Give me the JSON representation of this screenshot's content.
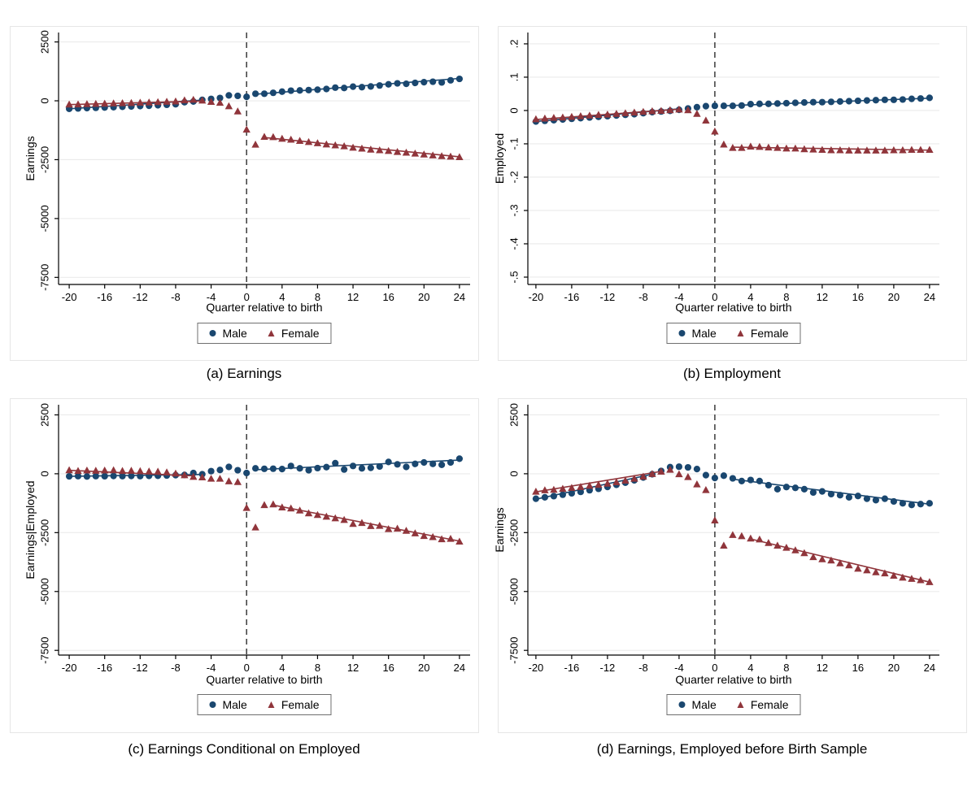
{
  "figure": {
    "background": "#ffffff",
    "text_color": "#000000",
    "gridline_color": "#ebebeb",
    "axis_color": "#000000",
    "panel_border_color": "#e6e6e6",
    "vline_style": "dashed",
    "vline_color": "#3a3a3a"
  },
  "legend": {
    "male_label": "Male",
    "female_label": "Female",
    "male_marker": "circle",
    "female_marker": "triangle",
    "position": "below-x-axis"
  },
  "colors": {
    "male": "#1a476f",
    "female": "#90353b"
  },
  "chart_data": [
    {
      "id": "a",
      "type": "scatter",
      "title": "(a) Earnings",
      "xlabel": "Quarter relative to birth",
      "ylabel": "Earnings",
      "xticks": [
        -20,
        -16,
        -12,
        -8,
        -4,
        0,
        4,
        8,
        12,
        16,
        20,
        24
      ],
      "xtick_labels": [
        "-20",
        "-16",
        "-12",
        "-8",
        "-4",
        "0",
        "4",
        "8",
        "12",
        "16",
        "20",
        "24"
      ],
      "yticks": [
        2500,
        0,
        -2500,
        -5000,
        -7500
      ],
      "ytick_labels": [
        "2500",
        "0",
        "-2500",
        "-5000",
        "-7500"
      ],
      "xlim": [
        -21.2,
        25.2
      ],
      "ylim": [
        -7800,
        2900
      ],
      "vline_x": 0,
      "grid": true,
      "x": [
        -20,
        -19,
        -18,
        -17,
        -16,
        -15,
        -14,
        -13,
        -12,
        -11,
        -10,
        -9,
        -8,
        -7,
        -6,
        -5,
        -4,
        -3,
        -2,
        -1,
        0,
        1,
        2,
        3,
        4,
        5,
        6,
        7,
        8,
        9,
        10,
        11,
        12,
        13,
        14,
        15,
        16,
        17,
        18,
        19,
        20,
        21,
        22,
        23,
        24
      ],
      "series": [
        {
          "name": "Male",
          "marker": "circle",
          "color": "#1a476f",
          "values": [
            -340,
            -325,
            -310,
            -300,
            -285,
            -270,
            -255,
            -240,
            -225,
            -210,
            -190,
            -170,
            -145,
            -60,
            -30,
            40,
            80,
            120,
            230,
            210,
            170,
            300,
            300,
            340,
            390,
            430,
            440,
            455,
            470,
            500,
            560,
            545,
            600,
            580,
            610,
            650,
            700,
            740,
            720,
            760,
            790,
            810,
            780,
            870,
            930
          ],
          "fit_segments": [
            [
              [
                -20,
                -340
              ],
              [
                -5,
                30
              ]
            ],
            [
              [
                1,
                280
              ],
              [
                24,
                950
              ]
            ]
          ]
        },
        {
          "name": "Female",
          "marker": "triangle",
          "color": "#90353b",
          "values": [
            -155,
            -150,
            -140,
            -130,
            -120,
            -110,
            -100,
            -90,
            -80,
            -70,
            -55,
            -40,
            -25,
            20,
            45,
            10,
            -45,
            -85,
            -230,
            -450,
            -1220,
            -1860,
            -1530,
            -1540,
            -1610,
            -1650,
            -1700,
            -1750,
            -1800,
            -1850,
            -1890,
            -1930,
            -1990,
            -2030,
            -2070,
            -2100,
            -2130,
            -2170,
            -2200,
            -2240,
            -2280,
            -2320,
            -2350,
            -2370,
            -2390
          ],
          "fit_segments": [
            [
              [
                -20,
                -160
              ],
              [
                -5,
                -10
              ]
            ],
            [
              [
                2,
                -1560
              ],
              [
                24,
                -2380
              ]
            ]
          ]
        }
      ]
    },
    {
      "id": "b",
      "type": "scatter",
      "title": "(b) Employment",
      "xlabel": "Quarter relative to birth",
      "ylabel": "Employed",
      "xticks": [
        -20,
        -16,
        -12,
        -8,
        -4,
        0,
        4,
        8,
        12,
        16,
        20,
        24
      ],
      "xtick_labels": [
        "-20",
        "-16",
        "-12",
        "-8",
        "-4",
        "0",
        "4",
        "8",
        "12",
        "16",
        "20",
        "24"
      ],
      "yticks": [
        0.2,
        0.1,
        0,
        -0.1,
        -0.2,
        -0.3,
        -0.4,
        -0.5
      ],
      "ytick_labels": [
        ".2",
        ".1",
        "0",
        "-.1",
        "-.2",
        "-.3",
        "-.4",
        "-.5"
      ],
      "xlim": [
        -20.9,
        25.1
      ],
      "ylim": [
        -0.522,
        0.234
      ],
      "vline_x": 0,
      "grid": true,
      "x": [
        -20,
        -19,
        -18,
        -17,
        -16,
        -15,
        -14,
        -13,
        -12,
        -11,
        -10,
        -9,
        -8,
        -7,
        -6,
        -5,
        -4,
        -3,
        -2,
        -1,
        0,
        1,
        2,
        3,
        4,
        5,
        6,
        7,
        8,
        9,
        10,
        11,
        12,
        13,
        14,
        15,
        16,
        17,
        18,
        19,
        20,
        21,
        22,
        23,
        24
      ],
      "series": [
        {
          "name": "Male",
          "marker": "circle",
          "color": "#1a476f",
          "values": [
            -0.033,
            -0.031,
            -0.029,
            -0.027,
            -0.025,
            -0.023,
            -0.021,
            -0.019,
            -0.017,
            -0.015,
            -0.013,
            -0.011,
            -0.008,
            -0.005,
            -0.003,
            -0.001,
            0.002,
            0.006,
            0.01,
            0.013,
            0.014,
            0.014,
            0.014,
            0.015,
            0.019,
            0.02,
            0.02,
            0.021,
            0.022,
            0.023,
            0.024,
            0.025,
            0.025,
            0.026,
            0.027,
            0.028,
            0.029,
            0.03,
            0.031,
            0.032,
            0.032,
            0.033,
            0.035,
            0.036,
            0.038
          ],
          "fit_segments": [
            [
              [
                -20,
                -0.033
              ],
              [
                -4,
                0.005
              ]
            ],
            [
              [
                1,
                0.014
              ],
              [
                24,
                0.037
              ]
            ]
          ]
        },
        {
          "name": "Female",
          "marker": "triangle",
          "color": "#90353b",
          "values": [
            -0.026,
            -0.024,
            -0.022,
            -0.021,
            -0.019,
            -0.017,
            -0.015,
            -0.013,
            -0.012,
            -0.01,
            -0.008,
            -0.006,
            -0.004,
            -0.002,
            -0.001,
            0.001,
            0.003,
            0.001,
            -0.01,
            -0.03,
            -0.063,
            -0.102,
            -0.112,
            -0.112,
            -0.108,
            -0.109,
            -0.111,
            -0.112,
            -0.114,
            -0.114,
            -0.116,
            -0.117,
            -0.118,
            -0.119,
            -0.119,
            -0.12,
            -0.12,
            -0.12,
            -0.12,
            -0.12,
            -0.119,
            -0.119,
            -0.118,
            -0.118,
            -0.118
          ],
          "fit_segments": [
            [
              [
                -20,
                -0.027
              ],
              [
                -4,
                0.004
              ]
            ],
            [
              [
                2,
                -0.11
              ],
              [
                24,
                -0.119
              ]
            ]
          ]
        }
      ]
    },
    {
      "id": "c",
      "type": "scatter",
      "title": "(c) Earnings Conditional on Employed",
      "xlabel": "Quarter relative to birth",
      "ylabel": "Earnings|Employed",
      "xticks": [
        -20,
        -16,
        -12,
        -8,
        -4,
        0,
        4,
        8,
        12,
        16,
        20,
        24
      ],
      "xtick_labels": [
        "-20",
        "-16",
        "-12",
        "-8",
        "-4",
        "0",
        "4",
        "8",
        "12",
        "16",
        "20",
        "24"
      ],
      "yticks": [
        2500,
        0,
        -2500,
        -5000,
        -7500
      ],
      "ytick_labels": [
        "2500",
        "0",
        "-2500",
        "-5000",
        "-7500"
      ],
      "xlim": [
        -21.2,
        25.2
      ],
      "ylim": [
        -7700,
        2930
      ],
      "vline_x": 0,
      "grid": true,
      "x": [
        -20,
        -19,
        -18,
        -17,
        -16,
        -15,
        -14,
        -13,
        -12,
        -11,
        -10,
        -9,
        -8,
        -7,
        -6,
        -5,
        -4,
        -3,
        -2,
        -1,
        0,
        1,
        2,
        3,
        4,
        5,
        6,
        7,
        8,
        9,
        10,
        11,
        12,
        13,
        14,
        15,
        16,
        17,
        18,
        19,
        20,
        21,
        22,
        23,
        24
      ],
      "series": [
        {
          "name": "Male",
          "marker": "circle",
          "color": "#1a476f",
          "values": [
            -110,
            -100,
            -115,
            -100,
            -105,
            -95,
            -100,
            -95,
            -100,
            -90,
            -85,
            -75,
            -60,
            -50,
            30,
            -20,
            110,
            160,
            290,
            150,
            30,
            230,
            210,
            215,
            200,
            330,
            230,
            150,
            240,
            280,
            450,
            180,
            330,
            230,
            250,
            310,
            500,
            400,
            290,
            420,
            480,
            420,
            380,
            480,
            640
          ],
          "fit_segments": [
            [
              [
                -20,
                -108
              ],
              [
                -5,
                -30
              ]
            ],
            [
              [
                1,
                170
              ],
              [
                24,
                580
              ]
            ]
          ]
        },
        {
          "name": "Female",
          "marker": "triangle",
          "color": "#90353b",
          "values": [
            150,
            120,
            140,
            130,
            140,
            150,
            120,
            130,
            110,
            100,
            90,
            60,
            10,
            -60,
            -130,
            -150,
            -210,
            -210,
            -320,
            -350,
            -1450,
            -2280,
            -1330,
            -1300,
            -1430,
            -1470,
            -1560,
            -1680,
            -1750,
            -1820,
            -1890,
            -1960,
            -2130,
            -2090,
            -2220,
            -2210,
            -2350,
            -2330,
            -2420,
            -2530,
            -2640,
            -2690,
            -2780,
            -2760,
            -2880
          ],
          "fit_segments": [
            [
              [
                -20,
                145
              ],
              [
                -6,
                -90
              ]
            ],
            [
              [
                3,
                -1330
              ],
              [
                24,
                -2860
              ]
            ]
          ]
        }
      ]
    },
    {
      "id": "d",
      "type": "scatter",
      "title": "(d) Earnings, Employed before Birth Sample",
      "xlabel": "Quarter relative to birth",
      "ylabel": "Earnings",
      "xticks": [
        -20,
        -16,
        -12,
        -8,
        -4,
        0,
        4,
        8,
        12,
        16,
        20,
        24
      ],
      "xtick_labels": [
        "-20",
        "-16",
        "-12",
        "-8",
        "-4",
        "0",
        "4",
        "8",
        "12",
        "16",
        "20",
        "24"
      ],
      "yticks": [
        2500,
        0,
        -2500,
        -5000,
        -7500
      ],
      "ytick_labels": [
        "2500",
        "0",
        "-2500",
        "-5000",
        "-7500"
      ],
      "xlim": [
        -20.9,
        25.1
      ],
      "ylim": [
        -7700,
        2930
      ],
      "vline_x": 0,
      "grid": true,
      "x": [
        -20,
        -19,
        -18,
        -17,
        -16,
        -15,
        -14,
        -13,
        -12,
        -11,
        -10,
        -9,
        -8,
        -7,
        -6,
        -5,
        -4,
        -3,
        -2,
        -1,
        0,
        1,
        2,
        3,
        4,
        5,
        6,
        7,
        8,
        9,
        10,
        11,
        12,
        13,
        14,
        15,
        16,
        17,
        18,
        19,
        20,
        21,
        22,
        23,
        24
      ],
      "series": [
        {
          "name": "Male",
          "marker": "circle",
          "color": "#1a476f",
          "values": [
            -1060,
            -1000,
            -950,
            -890,
            -830,
            -770,
            -700,
            -640,
            -560,
            -470,
            -380,
            -280,
            -160,
            -20,
            120,
            280,
            300,
            270,
            200,
            -60,
            -180,
            -80,
            -195,
            -310,
            -265,
            -310,
            -485,
            -655,
            -565,
            -600,
            -655,
            -795,
            -750,
            -865,
            -910,
            -1000,
            -945,
            -1060,
            -1120,
            -1060,
            -1175,
            -1255,
            -1325,
            -1290,
            -1255
          ],
          "fit_segments": [
            [
              [
                -20,
                -1080
              ],
              [
                -7,
                -20
              ]
            ],
            [
              [
                2,
                -230
              ],
              [
                24,
                -1290
              ]
            ]
          ]
        },
        {
          "name": "Female",
          "marker": "triangle",
          "color": "#90353b",
          "values": [
            -760,
            -700,
            -680,
            -640,
            -600,
            -560,
            -510,
            -470,
            -420,
            -360,
            -290,
            -210,
            -120,
            -10,
            90,
            170,
            -20,
            -140,
            -450,
            -690,
            -1980,
            -3050,
            -2600,
            -2650,
            -2750,
            -2790,
            -2940,
            -3050,
            -3140,
            -3250,
            -3370,
            -3540,
            -3630,
            -3680,
            -3800,
            -3890,
            -4030,
            -4100,
            -4180,
            -4230,
            -4330,
            -4410,
            -4460,
            -4520,
            -4600
          ],
          "fit_segments": [
            [
              [
                -20,
                -770
              ],
              [
                -6,
                100
              ]
            ],
            [
              [
                4,
                -2770
              ],
              [
                24,
                -4600
              ]
            ]
          ]
        }
      ]
    }
  ]
}
